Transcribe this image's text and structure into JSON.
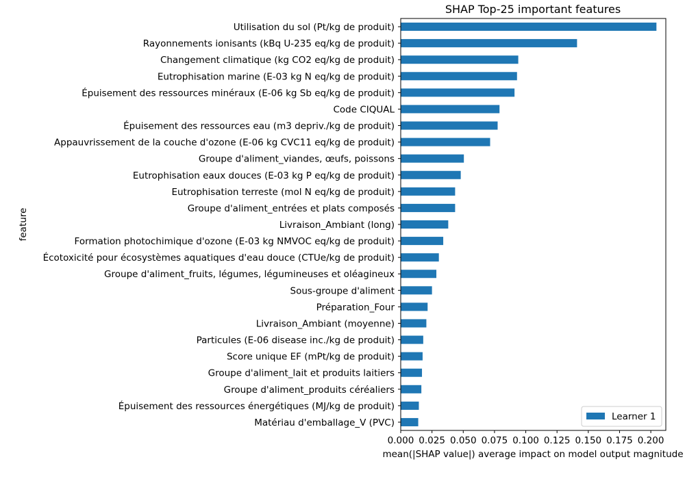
{
  "chart_data": {
    "type": "bar",
    "orientation": "horizontal",
    "title": "SHAP Top-25 important features",
    "xlabel": "mean(|SHAP value|) average impact on model output magnitude",
    "ylabel": "feature",
    "xlim": [
      0,
      0.212
    ],
    "xticks": [
      0.0,
      0.025,
      0.05,
      0.075,
      0.1,
      0.125,
      0.15,
      0.175,
      0.2
    ],
    "xtick_labels": [
      "0.000",
      "0.025",
      "0.050",
      "0.075",
      "0.100",
      "0.125",
      "0.150",
      "0.175",
      "0.200"
    ],
    "grid": false,
    "legend": {
      "position": "lower-right",
      "entries": [
        "Learner 1"
      ]
    },
    "categories": [
      "Utilisation du sol (Pt/kg de produit)",
      "Rayonnements ionisants (kBq U-235 eq/kg de produit)",
      "Changement climatique (kg CO2 eq/kg de produit)",
      "Eutrophisation marine (E-03 kg N eq/kg de produit)",
      "Épuisement des ressources minéraux (E-06 kg Sb eq/kg de produit)",
      "Code CIQUAL",
      "Épuisement des ressources eau (m3 depriv./kg de produit)",
      "Appauvrissement de la couche d'ozone (E-06 kg CVC11 eq/kg de produit)",
      "Groupe d'aliment_viandes, œufs, poissons",
      "Eutrophisation eaux douces (E-03 kg P eq/kg de produit)",
      "Eutrophisation terreste (mol N eq/kg de produit)",
      "Groupe d'aliment_entrées et plats composés",
      "Livraison_Ambiant (long)",
      "Formation photochimique d'ozone (E-03 kg NMVOC eq/kg de produit)",
      "Écotoxicité pour écosystèmes aquatiques d'eau douce (CTUe/kg de produit)",
      "Groupe d'aliment_fruits, légumes, légumineuses et oléagineux",
      "Sous-groupe d'aliment",
      "Préparation_Four",
      "Livraison_Ambiant (moyenne)",
      "Particules (E-06 disease inc./kg de produit)",
      "Score unique EF (mPt/kg de produit)",
      "Groupe d'aliment_lait et produits laitiers",
      "Groupe d'aliment_produits céréaliers",
      "Épuisement des ressources énergétiques (MJ/kg de produit)",
      "Matériau d'emballage_V (PVC)"
    ],
    "series": [
      {
        "name": "Learner 1",
        "color": "#1f77b4",
        "values": [
          0.2045,
          0.141,
          0.094,
          0.093,
          0.091,
          0.079,
          0.0775,
          0.0715,
          0.0505,
          0.048,
          0.0435,
          0.0435,
          0.038,
          0.034,
          0.0305,
          0.0285,
          0.025,
          0.0215,
          0.0205,
          0.018,
          0.0175,
          0.017,
          0.0165,
          0.0145,
          0.014
        ]
      }
    ]
  }
}
